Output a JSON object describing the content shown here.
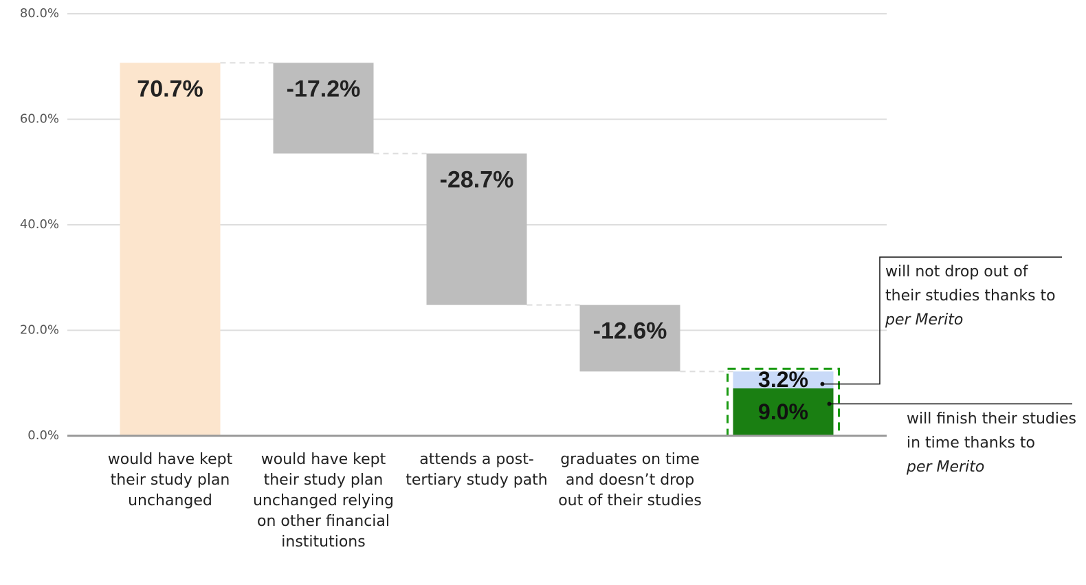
{
  "chart_data": {
    "type": "waterfall",
    "ylim": [
      0,
      80
    ],
    "yticks": [
      {
        "value": 0,
        "label": "0.0%"
      },
      {
        "value": 20,
        "label": "20.0%"
      },
      {
        "value": 40,
        "label": "40.0%"
      },
      {
        "value": 60,
        "label": "60.0%"
      },
      {
        "value": 80,
        "label": "80.0%"
      }
    ],
    "grid": true,
    "categories": [
      "would have kept their study plan unchanged",
      "would have kept their study plan unchanged relying on other financial institutions",
      "attends a post-tertiary study path",
      "graduates on time and doesn’t drop out of their studies",
      null
    ],
    "values": [
      70.7,
      -17.2,
      -28.7,
      -12.6,
      null
    ],
    "value_labels": [
      "70.7%",
      "-17.2%",
      "-28.7%",
      "-12.6%",
      null
    ],
    "colors": [
      "#fce5cd",
      "#bdbdbd",
      "#bdbdbd",
      "#bdbdbd",
      null
    ],
    "final_segments": [
      {
        "name": "will finish their studies in time thanks to",
        "emphasis": "per Merito",
        "value": 9.0,
        "value_label": "9.0%",
        "color": "#1a7f12"
      },
      {
        "name": "will not drop out of their studies thanks to",
        "emphasis": "per Merito",
        "value": 3.2,
        "value_label": "3.2%",
        "color": "#c9daf8"
      }
    ]
  }
}
